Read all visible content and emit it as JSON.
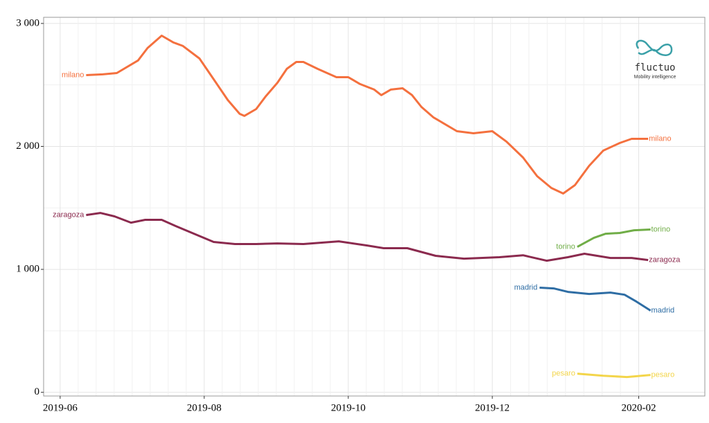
{
  "chart_data": {
    "type": "line",
    "xlim": [
      -7,
      273
    ],
    "ylim": [
      -30,
      3050
    ],
    "xticks": [
      {
        "value": 0,
        "label": "2019-06"
      },
      {
        "value": 61,
        "label": "2019-08"
      },
      {
        "value": 122,
        "label": "2019-10"
      },
      {
        "value": 183,
        "label": "2019-12"
      },
      {
        "value": 245,
        "label": "2020-02"
      }
    ],
    "yticks": [
      0,
      {
        "value": 1000,
        "label": "1 000"
      },
      {
        "value": 2000,
        "label": "2 000"
      },
      {
        "value": 3000,
        "label": "3 000"
      }
    ],
    "grid": true,
    "annotations": [
      "fluctuo",
      "Mobility intelligence"
    ],
    "series": [
      {
        "name": "milano",
        "color": "#f4703e",
        "x": [
          11,
          18,
          24,
          33,
          37,
          43,
          48,
          52,
          59,
          65,
          71,
          76,
          78,
          83,
          87,
          92,
          96,
          100,
          103,
          109,
          117,
          122,
          127,
          133,
          136,
          140,
          145,
          149,
          153,
          158,
          162,
          168,
          175,
          183,
          189,
          196,
          202,
          208,
          213,
          218,
          224,
          230,
          237,
          242,
          249
        ],
        "values": [
          2580,
          2586,
          2597,
          2699,
          2800,
          2901,
          2845,
          2817,
          2715,
          2546,
          2377,
          2265,
          2248,
          2304,
          2406,
          2518,
          2631,
          2687,
          2687,
          2631,
          2563,
          2563,
          2507,
          2462,
          2417,
          2462,
          2473,
          2417,
          2321,
          2237,
          2192,
          2124,
          2107,
          2124,
          2039,
          1910,
          1758,
          1662,
          1617,
          1685,
          1842,
          1966,
          2028,
          2062,
          2062
        ]
      },
      {
        "name": "zaragoza",
        "color": "#8b2a4e",
        "x": [
          11,
          17,
          23,
          30,
          36,
          43,
          49,
          58,
          65,
          74,
          83,
          92,
          103,
          118,
          130,
          137,
          147,
          159,
          171,
          186,
          196,
          206,
          215,
          222,
          233,
          242,
          249
        ],
        "values": [
          1442,
          1459,
          1431,
          1380,
          1403,
          1403,
          1352,
          1279,
          1223,
          1206,
          1206,
          1211,
          1206,
          1228,
          1194,
          1172,
          1172,
          1110,
          1087,
          1099,
          1115,
          1070,
          1099,
          1127,
          1093,
          1093,
          1076
        ]
      },
      {
        "name": "torino",
        "color": "#70ad47",
        "x": [
          219,
          226,
          231,
          237,
          243,
          250
        ],
        "values": [
          1183,
          1256,
          1290,
          1296,
          1318,
          1324
        ]
      },
      {
        "name": "madrid",
        "color": "#2e6da4",
        "x": [
          203,
          209,
          215,
          224,
          233,
          239,
          244,
          250
        ],
        "values": [
          851,
          845,
          817,
          800,
          811,
          794,
          738,
          665
        ]
      },
      {
        "name": "pesaro",
        "color": "#f3d54a",
        "x": [
          219,
          230,
          240,
          250
        ],
        "values": [
          152,
          135,
          124,
          141
        ]
      }
    ]
  }
}
